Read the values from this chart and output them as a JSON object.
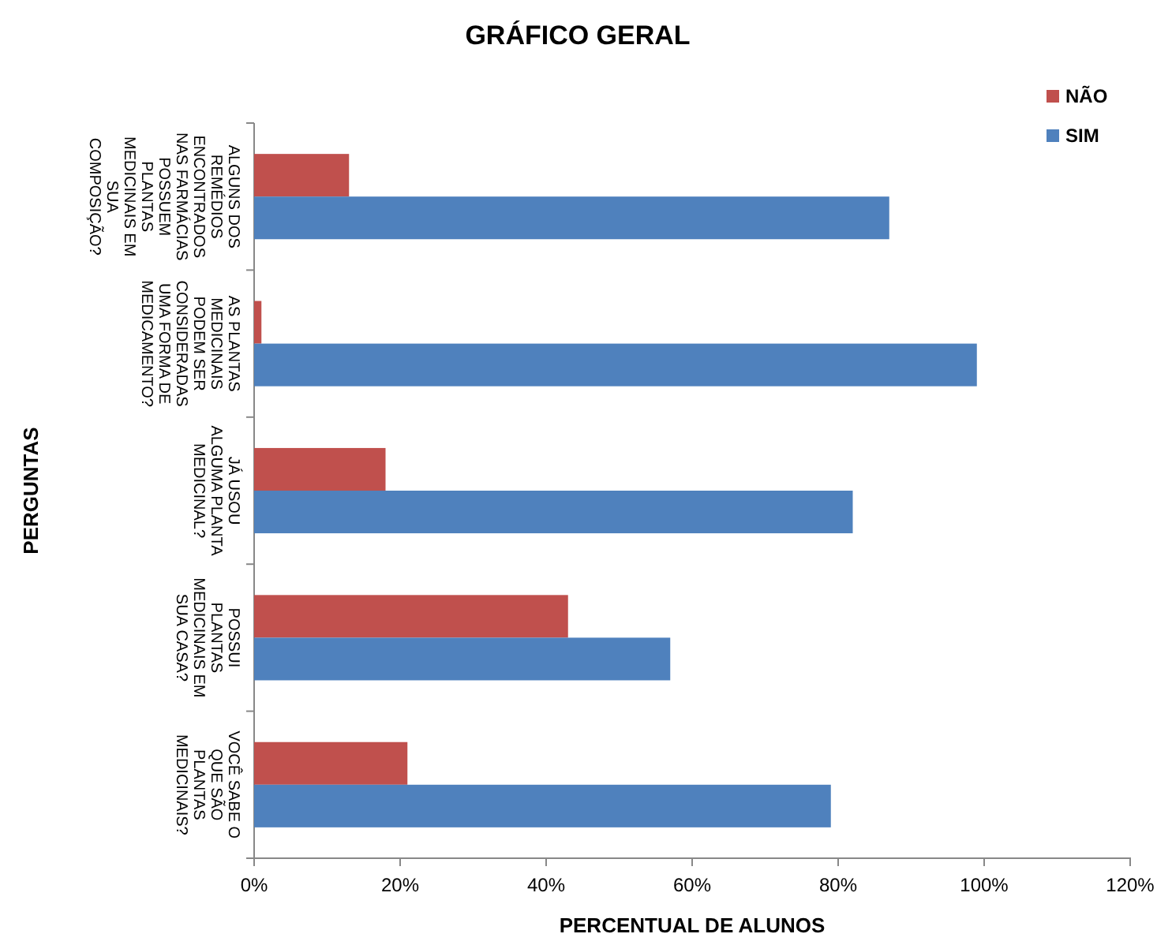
{
  "chart_data": {
    "type": "bar",
    "orientation": "horizontal",
    "title": "GRÁFICO GERAL",
    "xlabel": "PERCENTUAL DE ALUNOS",
    "ylabel": "PERGUNTAS",
    "categories": [
      "ALGUNS DOS\nREMÉDIOS\nENCONTRADOS\nNAS FARMÁCIAS\nPOSSUEM\nPLANTAS\nMEDICINAIS EM\nSUA\nCOMPOSIÇÃO?",
      "AS PLANTAS\nMEDICINAIS\nPODEM SER\nCONSIDERADAS\nUMA FORMA DE\nMEDICAMENTO?",
      "JÁ USOU\nALGUMA PLANTA\nMEDICINAL?",
      "POSSUI\nPLANTAS\nMEDICINAIS EM\nSUA CASA?",
      "VOCÊ SABE O\nQUE SÃO\nPLANTAS\nMEDICINAIS?"
    ],
    "series": [
      {
        "name": "NÃO",
        "color": "#c0504d",
        "values": [
          13,
          1,
          18,
          43,
          21
        ]
      },
      {
        "name": "SIM",
        "color": "#4f81bd",
        "values": [
          87,
          99,
          82,
          57,
          79
        ]
      }
    ],
    "xlim": [
      0,
      120
    ],
    "xticks": [
      {
        "value": 0,
        "label": "0%"
      },
      {
        "value": 20,
        "label": "20%"
      },
      {
        "value": 40,
        "label": "40%"
      },
      {
        "value": 60,
        "label": "60%"
      },
      {
        "value": 80,
        "label": "80%"
      },
      {
        "value": 100,
        "label": "100%"
      },
      {
        "value": 120,
        "label": "120%"
      }
    ],
    "grid": false,
    "legend": "top right"
  }
}
